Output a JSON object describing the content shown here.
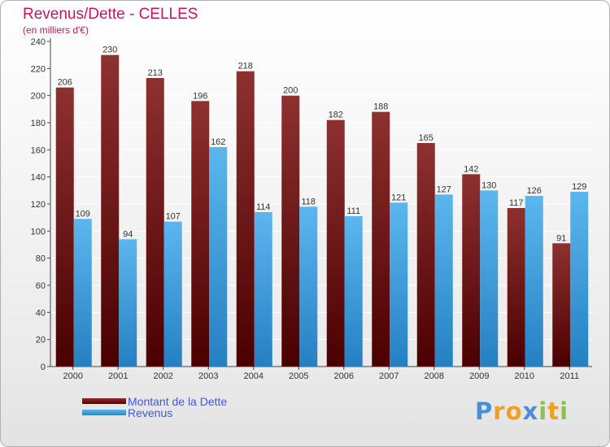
{
  "chart_data": {
    "type": "bar",
    "title": "Revenus/Dette - CELLES",
    "subtitle": "(en milliers d'€)",
    "xlabel": "",
    "ylabel": "",
    "ylim": [
      0,
      240
    ],
    "yticks": [
      0,
      20,
      40,
      60,
      80,
      100,
      120,
      140,
      160,
      180,
      200,
      220,
      240
    ],
    "grid": true,
    "categories": [
      "2000",
      "2001",
      "2002",
      "2003",
      "2004",
      "2005",
      "2006",
      "2007",
      "2008",
      "2009",
      "2010",
      "2011"
    ],
    "series": [
      {
        "name": "Montant de la Dette",
        "values": [
          206,
          230,
          213,
          196,
          218,
          200,
          182,
          188,
          165,
          142,
          117,
          91
        ],
        "color": "#7a1a1a"
      },
      {
        "name": "Revenus",
        "values": [
          109,
          94,
          107,
          162,
          114,
          118,
          111,
          121,
          127,
          130,
          126,
          129
        ],
        "color": "#4aa3e0"
      }
    ],
    "legend_position": "bottom-left"
  },
  "logo": {
    "letters": [
      "P",
      "r",
      "o",
      "x",
      "i",
      "t",
      "i"
    ],
    "colors": [
      "#4a90d9",
      "#f0a020",
      "#f0a020",
      "#4a90d9",
      "#8bc34a",
      "#f0a020",
      "#8bc34a"
    ]
  }
}
